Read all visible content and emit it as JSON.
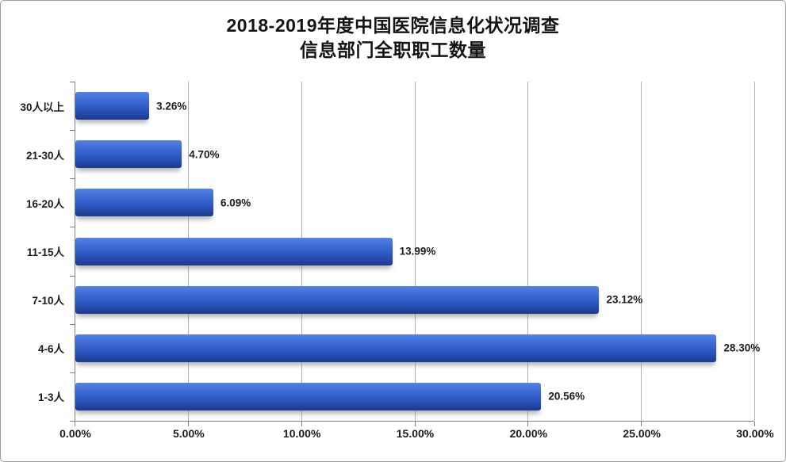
{
  "chart_data": {
    "type": "bar",
    "orientation": "horizontal",
    "title_line1": "2018-2019年度中国医院信息化状况调查",
    "title_line2": "信息部门全职职工数量",
    "categories": [
      "30人以上",
      "21-30人",
      "16-20人",
      "11-15人",
      "7-10人",
      "4-6人",
      "1-3人"
    ],
    "values": [
      3.26,
      4.7,
      6.09,
      13.99,
      23.12,
      28.3,
      20.56
    ],
    "data_labels": [
      "3.26%",
      "4.70%",
      "6.09%",
      "13.99%",
      "23.12%",
      "28.30%",
      "20.56%"
    ],
    "x_axis": {
      "min": 0,
      "max": 30,
      "step": 5,
      "tick_labels": [
        "0.00%",
        "5.00%",
        "10.00%",
        "15.00%",
        "20.00%",
        "25.00%",
        "30.00%"
      ]
    },
    "grid": true,
    "legend": "none",
    "colors": {
      "bar_top": "#5585e8",
      "bar_upper": "#4a78de",
      "bar_mid": "#2d59c4",
      "bar_lower": "#20409a",
      "bar_bottom": "#1c3a8d",
      "gridline": "#b2b2b2",
      "axis": "#7f7f7f",
      "text": "#1c1c1c"
    }
  }
}
